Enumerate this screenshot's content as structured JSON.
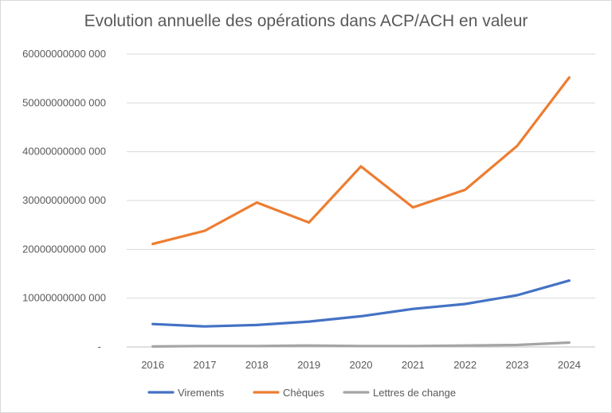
{
  "chart_data": {
    "type": "line",
    "title": "Evolution annuelle des opérations dans ACP/ACH en valeur",
    "categories": [
      "2016",
      "2017",
      "2018",
      "2019",
      "2020",
      "2021",
      "2022",
      "2023",
      "2024"
    ],
    "y_ticks": [
      {
        "value": 0,
        "label": "-"
      },
      {
        "value": 10000000000,
        "label": "10000000000 000"
      },
      {
        "value": 20000000000,
        "label": "20000000000 000"
      },
      {
        "value": 30000000000,
        "label": "30000000000 000"
      },
      {
        "value": 40000000000,
        "label": "40000000000 000"
      },
      {
        "value": 50000000000,
        "label": "50000000000 000"
      },
      {
        "value": 60000000000,
        "label": "60000000000 000"
      }
    ],
    "ylim": [
      0,
      60000000000
    ],
    "grid": true,
    "legend_position": "bottom",
    "series": [
      {
        "name": "Virements",
        "color": "#4472c4",
        "values": [
          4700000000,
          4200000000,
          4500000000,
          5200000000,
          6300000000,
          7800000000,
          8800000000,
          10600000000,
          13600000000
        ]
      },
      {
        "name": "Chèques",
        "color": "#ed7d31",
        "values": [
          21100000000,
          23800000000,
          29600000000,
          25500000000,
          37000000000,
          28600000000,
          32200000000,
          41200000000,
          55200000000
        ]
      },
      {
        "name": "Lettres de change",
        "color": "#a5a5a5",
        "values": [
          100000000,
          200000000,
          200000000,
          300000000,
          200000000,
          200000000,
          300000000,
          400000000,
          900000000
        ]
      }
    ]
  }
}
